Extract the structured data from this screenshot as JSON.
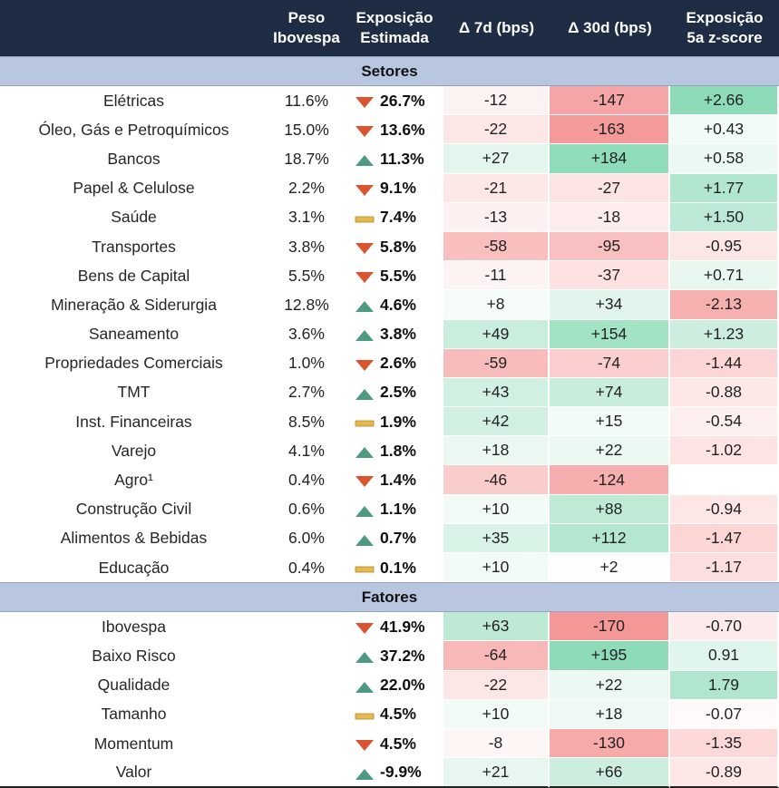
{
  "header": {
    "col_name": "",
    "col_peso": [
      "Peso",
      "Ibovespa"
    ],
    "col_exp": [
      "Exposição",
      "Estimada"
    ],
    "col_d7": "Δ 7d (bps)",
    "col_d30": "Δ 30d (bps)",
    "col_z": [
      "Exposição",
      "5a z-score"
    ]
  },
  "colors": {
    "header_bg": "#1f2d44",
    "section_bg": "#b8c7df",
    "arrow_up": "#4d9b82",
    "arrow_down": "#d9542f",
    "flat": "#e5b94e",
    "pos_strong": "#91ddbc",
    "neg_strong": "#f4a2a2"
  },
  "sections": [
    {
      "title": "Setores",
      "rows": [
        {
          "name": "Elétricas",
          "peso": "11.6%",
          "dir": "down",
          "exp": "26.7%",
          "d7": "-12",
          "d30": "-147",
          "z": "+2.66",
          "c7": "#fdf2f2",
          "c30": "#f5a5a5",
          "cz": "#8edbb9"
        },
        {
          "name": "Óleo, Gás e Petroquímicos",
          "peso": "15.0%",
          "dir": "down",
          "exp": "13.6%",
          "d7": "-22",
          "d30": "-163",
          "z": "+0.43",
          "c7": "#fde6e6",
          "c30": "#f49a9a",
          "cz": "#f2fbf7"
        },
        {
          "name": "Bancos",
          "peso": "18.7%",
          "dir": "up",
          "exp": "11.3%",
          "d7": "+27",
          "d30": "+184",
          "z": "+0.58",
          "c7": "#e3f6ed",
          "c30": "#8fdcba",
          "cz": "#ecf9f3"
        },
        {
          "name": "Papel & Celulose",
          "peso": "2.2%",
          "dir": "down",
          "exp": "9.1%",
          "d7": "-21",
          "d30": "-27",
          "z": "+1.77",
          "c7": "#fde7e7",
          "c30": "#fde4e4",
          "cz": "#b2e7cf"
        },
        {
          "name": "Saúde",
          "peso": "3.1%",
          "dir": "flat",
          "exp": "7.4%",
          "d7": "-13",
          "d30": "-18",
          "z": "+1.50",
          "c7": "#fdf0f0",
          "c30": "#feeded",
          "cz": "#bce9d6"
        },
        {
          "name": "Transportes",
          "peso": "3.8%",
          "dir": "down",
          "exp": "5.8%",
          "d7": "-58",
          "d30": "-95",
          "z": "-0.95",
          "c7": "#f9bebe",
          "c30": "#f8c0c0",
          "cz": "#fde6e6"
        },
        {
          "name": "Bens de Capital",
          "peso": "5.5%",
          "dir": "down",
          "exp": "5.5%",
          "d7": "-11",
          "d30": "-37",
          "z": "+0.71",
          "c7": "#fef3f3",
          "c30": "#fde0e0",
          "cz": "#e8f8f1"
        },
        {
          "name": "Mineração & Siderurgia",
          "peso": "12.8%",
          "dir": "up",
          "exp": "4.6%",
          "d7": "+8",
          "d30": "+34",
          "z": "-2.13",
          "c7": "#f6fcf9",
          "c30": "#e1f5ec",
          "cz": "#f7b0b0"
        },
        {
          "name": "Saneamento",
          "peso": "3.6%",
          "dir": "up",
          "exp": "3.8%",
          "d7": "+49",
          "d30": "+154",
          "z": "+1.23",
          "c7": "#c9eedd",
          "c30": "#a2e2c5",
          "cz": "#cdeedf"
        },
        {
          "name": "Propriedades Comerciais",
          "peso": "1.0%",
          "dir": "down",
          "exp": "2.6%",
          "d7": "-59",
          "d30": "-74",
          "z": "-1.44",
          "c7": "#f9bcbc",
          "c30": "#fbcfcf",
          "cz": "#fcd6d6"
        },
        {
          "name": "TMT",
          "peso": "2.7%",
          "dir": "up",
          "exp": "2.5%",
          "d7": "+43",
          "d30": "+74",
          "z": "-0.88",
          "c7": "#d0f0e1",
          "c30": "#c8edda",
          "cz": "#fde7e7"
        },
        {
          "name": "Inst. Financeiras",
          "peso": "8.5%",
          "dir": "flat",
          "exp": "1.9%",
          "d7": "+42",
          "d30": "+15",
          "z": "-0.54",
          "c7": "#d1f0e2",
          "c30": "#f2fbf7",
          "cz": "#feefef"
        },
        {
          "name": "Varejo",
          "peso": "4.1%",
          "dir": "up",
          "exp": "1.8%",
          "d7": "+18",
          "d30": "+22",
          "z": "-1.02",
          "c7": "#eaf8f1",
          "c30": "#ecf9f3",
          "cz": "#fde3e3"
        },
        {
          "name": "Agro¹",
          "peso": "0.4%",
          "dir": "down",
          "exp": "1.4%",
          "d7": "-46",
          "d30": "-124",
          "z": "",
          "c7": "#fbcccc",
          "c30": "#f6aeae",
          "cz": "#ffffff"
        },
        {
          "name": "Construção Civil",
          "peso": "0.6%",
          "dir": "up",
          "exp": "1.1%",
          "d7": "+10",
          "d30": "+88",
          "z": "-0.94",
          "c7": "#f3fbf7",
          "c30": "#bfead6",
          "cz": "#fde6e6"
        },
        {
          "name": "Alimentos & Bebidas",
          "peso": "6.0%",
          "dir": "up",
          "exp": "0.7%",
          "d7": "+35",
          "d30": "+112",
          "z": "-1.47",
          "c7": "#daf3e7",
          "c30": "#b3e7cf",
          "cz": "#fcd5d5"
        },
        {
          "name": "Educação",
          "peso": "0.4%",
          "dir": "flat",
          "exp": "0.1%",
          "d7": "+10",
          "d30": "+2",
          "z": "-1.17",
          "c7": "#f3fbf7",
          "c30": "#fcfefd",
          "cz": "#fddede"
        }
      ]
    },
    {
      "title": "Fatores",
      "rows": [
        {
          "name": "Ibovespa",
          "peso": "",
          "dir": "down",
          "exp": "41.9%",
          "d7": "+63",
          "d30": "-170",
          "z": "-0.70",
          "c7": "#bde9d5",
          "c30": "#f49797",
          "cz": "#fdebeb"
        },
        {
          "name": "Baixo Risco",
          "peso": "",
          "dir": "up",
          "exp": "37.2%",
          "d7": "-64",
          "d30": "+195",
          "z": "0.91",
          "c7": "#f8b8b8",
          "c30": "#8edbb9",
          "cz": "#e0f5eb"
        },
        {
          "name": "Qualidade",
          "peso": "",
          "dir": "up",
          "exp": "22.0%",
          "d7": "-22",
          "d30": "+22",
          "z": "1.79",
          "c7": "#fde6e6",
          "c30": "#ecf9f3",
          "cz": "#b1e6ce"
        },
        {
          "name": "Tamanho",
          "peso": "",
          "dir": "flat",
          "exp": "4.5%",
          "d7": "+10",
          "d30": "+18",
          "z": "-0.07",
          "c7": "#f3fbf7",
          "c30": "#eff9f4",
          "cz": "#fefafa"
        },
        {
          "name": "Momentum",
          "peso": "",
          "dir": "down",
          "exp": "4.5%",
          "d7": "-8",
          "d30": "-130",
          "z": "-1.35",
          "c7": "#fef5f5",
          "c30": "#f6aaaa",
          "cz": "#fcd8d8"
        },
        {
          "name": "Valor",
          "peso": "",
          "dir": "up",
          "exp": "-9.9%",
          "d7": "+21",
          "d30": "+66",
          "z": "-0.89",
          "c7": "#e7f7f0",
          "c30": "#cdeedf",
          "cz": "#fde7e7"
        }
      ]
    }
  ]
}
